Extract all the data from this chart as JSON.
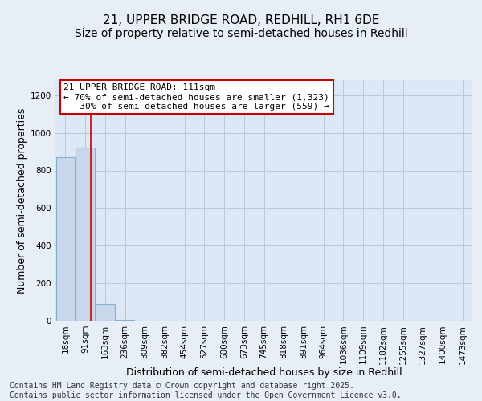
{
  "title_line1": "21, UPPER BRIDGE ROAD, REDHILL, RH1 6DE",
  "title_line2": "Size of property relative to semi-detached houses in Redhill",
  "xlabel": "Distribution of semi-detached houses by size in Redhill",
  "ylabel": "Number of semi-detached properties",
  "bar_labels": [
    "18sqm",
    "91sqm",
    "163sqm",
    "236sqm",
    "309sqm",
    "382sqm",
    "454sqm",
    "527sqm",
    "600sqm",
    "673sqm",
    "745sqm",
    "818sqm",
    "891sqm",
    "964sqm",
    "1036sqm",
    "1109sqm",
    "1182sqm",
    "1255sqm",
    "1327sqm",
    "1400sqm",
    "1473sqm"
  ],
  "bar_heights": [
    870,
    920,
    90,
    5,
    0,
    0,
    0,
    0,
    0,
    0,
    0,
    0,
    0,
    0,
    0,
    0,
    0,
    0,
    0,
    0,
    0
  ],
  "bar_color": "#c8d8ec",
  "bar_edge_color": "#8ab0d0",
  "ylim": [
    0,
    1280
  ],
  "yticks": [
    0,
    200,
    400,
    600,
    800,
    1000,
    1200
  ],
  "red_line_x": 1.27,
  "annotation_line1": "21 UPPER BRIDGE ROAD: 111sqm",
  "annotation_line2": "← 70% of semi-detached houses are smaller (1,323)",
  "annotation_line3": "   30% of semi-detached houses are larger (559) →",
  "annotation_box_color": "#ffffff",
  "annotation_box_edge": "#cc0000",
  "footer_text": "Contains HM Land Registry data © Crown copyright and database right 2025.\nContains public sector information licensed under the Open Government Licence v3.0.",
  "background_color": "#e8eef5",
  "plot_bg_color": "#dce8f5",
  "grid_color": "#b8c8d8",
  "title_fontsize": 11,
  "subtitle_fontsize": 10,
  "axis_label_fontsize": 9,
  "tick_fontsize": 7.5,
  "annot_fontsize": 8,
  "footer_fontsize": 7
}
